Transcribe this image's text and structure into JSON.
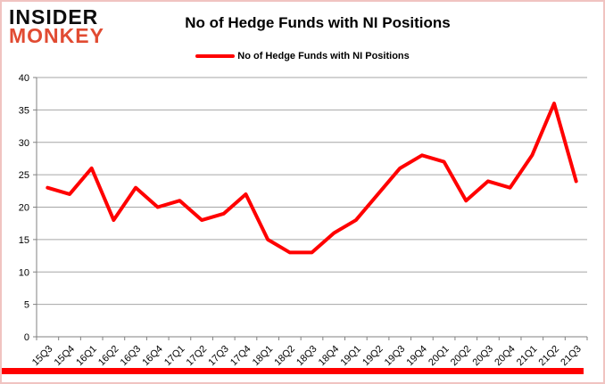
{
  "logo": {
    "line1": "INSIDER",
    "line2": "MONKEY"
  },
  "header": {
    "title": "No of Hedge Funds with NI Positions"
  },
  "legend": {
    "label": "No of Hedge Funds with NI Positions"
  },
  "colors": {
    "line": "#ff0000",
    "logo_black": "#0d0d0d",
    "logo_red": "#e14b32",
    "gridline": "#a6a6a6",
    "axis": "#808080",
    "tick_label": "#000000",
    "frame_border": "#f0c3c1",
    "bottom_bar": "#ff0000"
  },
  "chart_data": {
    "type": "line",
    "title": "No of Hedge Funds with NI Positions",
    "categories": [
      "15Q3",
      "15Q4",
      "16Q1",
      "16Q2",
      "16Q3",
      "16Q4",
      "17Q1",
      "17Q2",
      "17Q3",
      "17Q4",
      "18Q1",
      "18Q2",
      "18Q3",
      "18Q4",
      "19Q1",
      "19Q2",
      "19Q3",
      "19Q4",
      "20Q1",
      "20Q2",
      "20Q3",
      "20Q4",
      "21Q1",
      "21Q2",
      "21Q3"
    ],
    "series": [
      {
        "name": "No of Hedge Funds with NI Positions",
        "color": "#ff0000",
        "values": [
          23,
          22,
          26,
          18,
          23,
          20,
          21,
          18,
          19,
          22,
          15,
          13,
          13,
          16,
          18,
          22,
          26,
          28,
          27,
          21,
          24,
          23,
          28,
          36,
          24
        ]
      }
    ],
    "xlabel": "",
    "ylabel": "",
    "ylim": [
      0,
      40
    ],
    "ytick_step": 5,
    "grid": "horizontal",
    "legend_position": "top-center",
    "x_tick_label_rotation": 45
  }
}
